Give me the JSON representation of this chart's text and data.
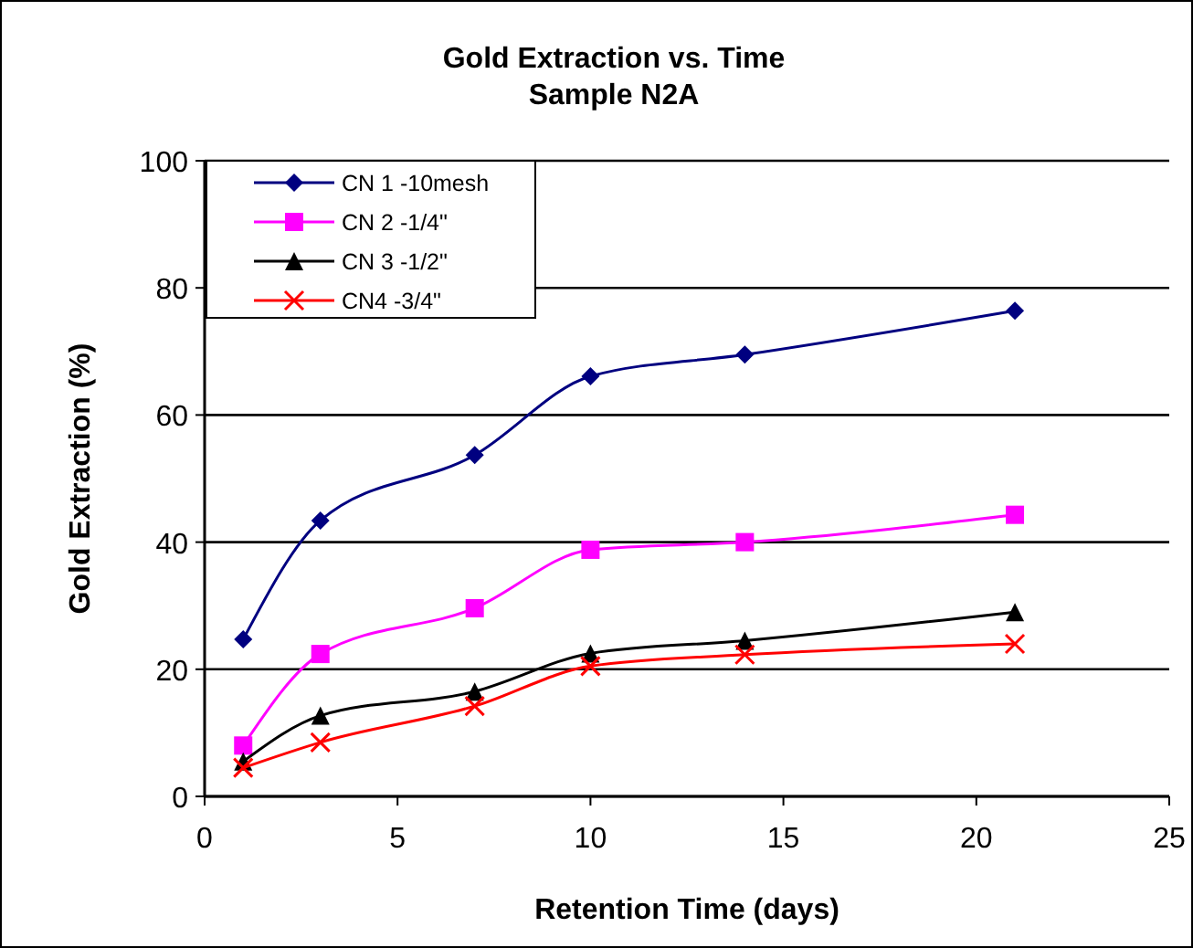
{
  "chart_data": {
    "type": "line",
    "title": "Gold Extraction vs. Time",
    "subtitle": "Sample N2A",
    "xlabel": "Retention Time (days)",
    "ylabel": "Gold Extraction (%)",
    "x": [
      1,
      3,
      7,
      10,
      14,
      21
    ],
    "series": [
      {
        "name": "CN 1 -10mesh",
        "color": "#000080",
        "marker": "diamond",
        "values": [
          24.7,
          43.4,
          53.7,
          66.1,
          69.5,
          76.4
        ]
      },
      {
        "name": "CN 2 -1/4\"",
        "color": "#ff00ff",
        "marker": "square",
        "values": [
          8,
          22.4,
          29.6,
          38.8,
          40,
          44.3
        ]
      },
      {
        "name": "CN 3 -1/2\"",
        "color": "#000000",
        "marker": "triangle",
        "values": [
          5.5,
          12.7,
          16.5,
          22.5,
          24.5,
          29
        ]
      },
      {
        "name": "CN4 -3/4\"",
        "color": "#ff0000",
        "marker": "cross",
        "values": [
          4.5,
          8.5,
          14.2,
          20.5,
          22.3,
          24
        ]
      }
    ],
    "xlim": [
      0,
      25
    ],
    "xticks": [
      0,
      5,
      10,
      15,
      20,
      25
    ],
    "ylim": [
      0,
      100
    ],
    "yticks": [
      0,
      20,
      40,
      60,
      80,
      100
    ],
    "grid": "y",
    "legend": "top left",
    "line_style": "solid"
  }
}
